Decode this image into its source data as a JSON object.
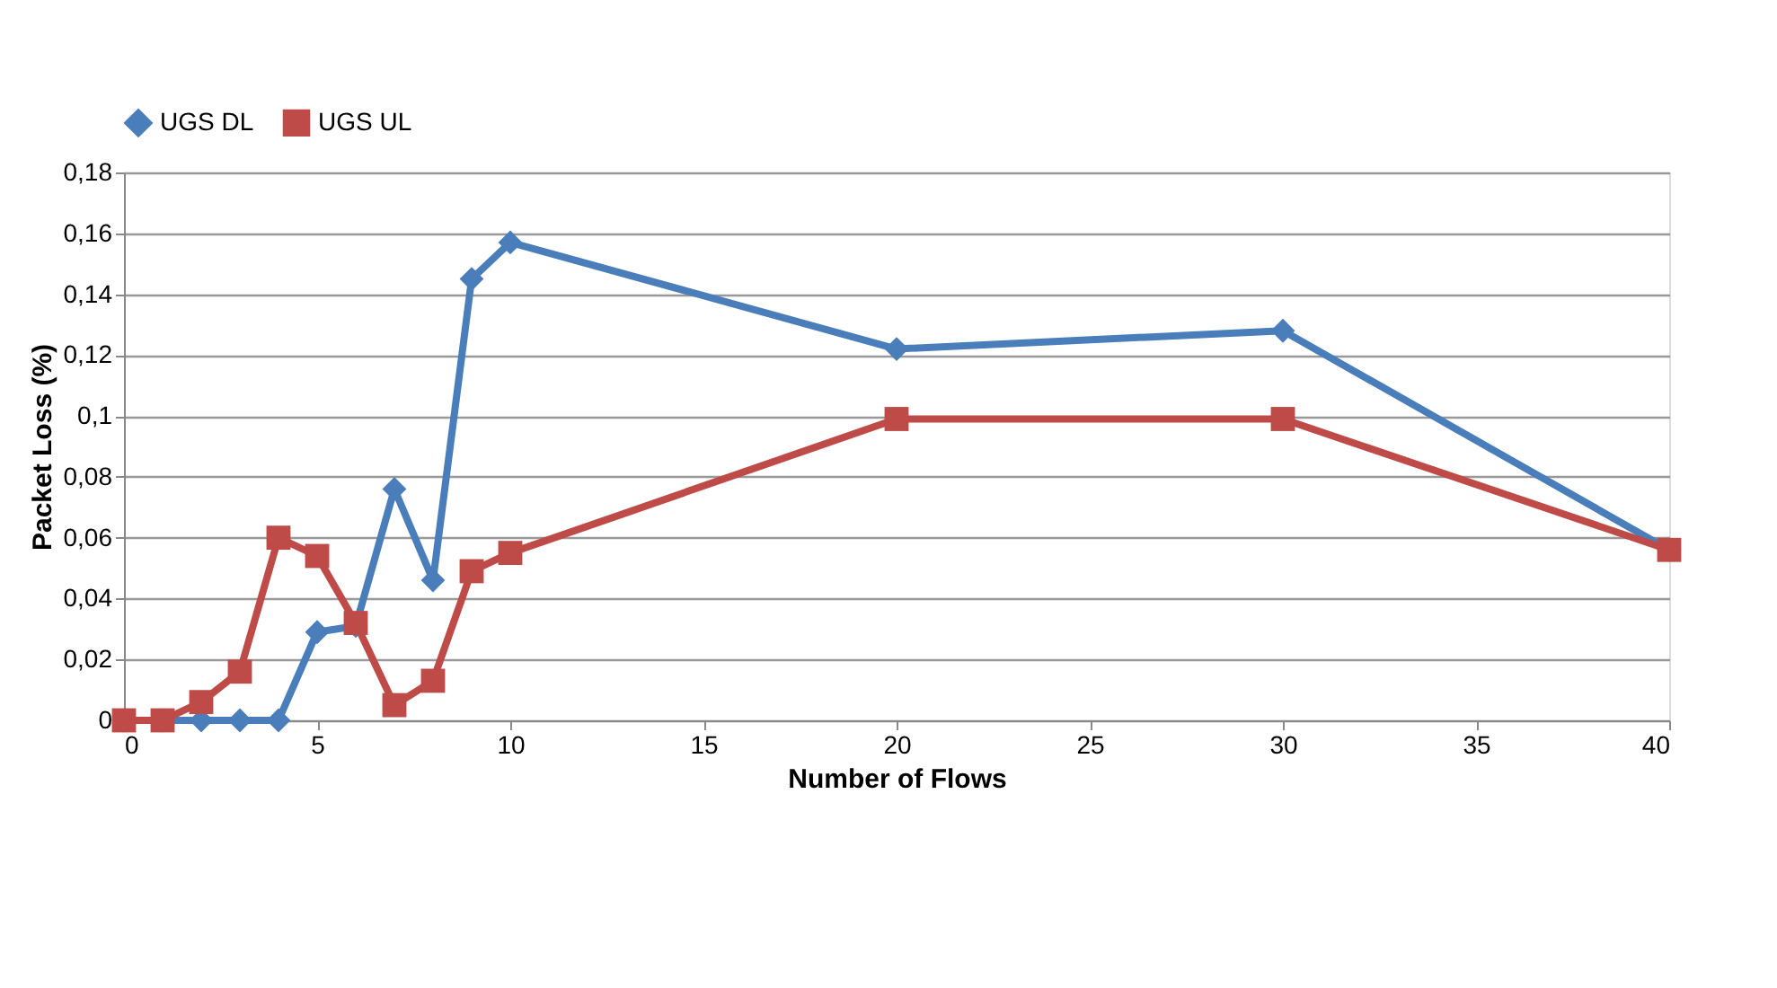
{
  "chart_data": {
    "type": "line",
    "xlabel": "Number of Flows",
    "ylabel": "Packet Loss (%)",
    "x": [
      0,
      1,
      2,
      3,
      4,
      5,
      6,
      7,
      8,
      9,
      10,
      20,
      30,
      40
    ],
    "series": [
      {
        "name": "UGS DL",
        "color": "#4a7ebb",
        "marker": "diamond",
        "values": [
          0,
          0,
          0,
          0,
          0,
          0.029,
          0.031,
          0.076,
          0.046,
          0.145,
          0.157,
          0.122,
          0.128,
          0.056
        ]
      },
      {
        "name": "UGS UL",
        "color": "#be4b48",
        "marker": "square",
        "values": [
          0,
          0,
          0.006,
          0.016,
          0.06,
          0.054,
          0.032,
          0.005,
          0.013,
          0.049,
          0.055,
          0.099,
          0.099,
          0.056
        ]
      }
    ],
    "xlim": [
      0,
      40
    ],
    "xticks": [
      0,
      5,
      10,
      15,
      20,
      25,
      30,
      35,
      40
    ],
    "ylim": [
      0,
      0.18
    ],
    "yticks": [
      {
        "value": 0,
        "label": "0"
      },
      {
        "value": 0.02,
        "label": "0,02"
      },
      {
        "value": 0.04,
        "label": "0,04"
      },
      {
        "value": 0.06,
        "label": "0,06"
      },
      {
        "value": 0.08,
        "label": "0,08"
      },
      {
        "value": 0.1,
        "label": "0,1"
      },
      {
        "value": 0.12,
        "label": "0,12"
      },
      {
        "value": 0.14,
        "label": "0,14"
      },
      {
        "value": 0.16,
        "label": "0,16"
      },
      {
        "value": 0.18,
        "label": "0,18"
      }
    ],
    "grid": "y",
    "legend": "top"
  }
}
